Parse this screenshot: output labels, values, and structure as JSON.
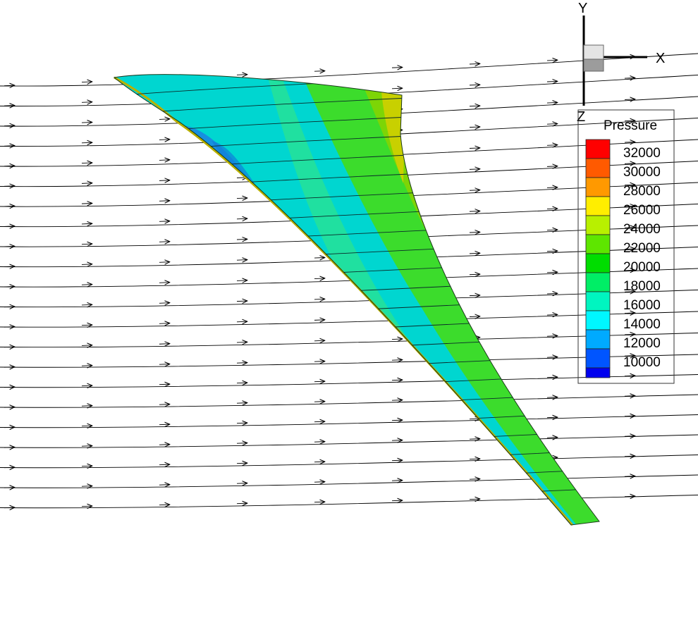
{
  "axes_triad": {
    "labels": {
      "y": "Y",
      "x": "X",
      "z": "Z"
    }
  },
  "legend": {
    "title": "Pressure",
    "levels": [
      {
        "value": "32000",
        "color": "#ff0000"
      },
      {
        "value": "30000",
        "color": "#ff5a00"
      },
      {
        "value": "28000",
        "color": "#ff9900"
      },
      {
        "value": "26000",
        "color": "#ffee00"
      },
      {
        "value": "24000",
        "color": "#b8f000"
      },
      {
        "value": "22000",
        "color": "#5ee600"
      },
      {
        "value": "20000",
        "color": "#00dd00"
      },
      {
        "value": "18000",
        "color": "#00ee66"
      },
      {
        "value": "16000",
        "color": "#00f5c0"
      },
      {
        "value": "14000",
        "color": "#00f7ff"
      },
      {
        "value": "12000",
        "color": "#00aaff"
      },
      {
        "value": "10000",
        "color": "#0055ff"
      }
    ],
    "lowest_color": "#0000ee"
  },
  "surface_colors": {
    "low": "#1690e0",
    "mid_low": "#00d6d0",
    "mid": "#20e0a0",
    "mid_high": "#3cdc2c",
    "high": "#88d400",
    "edge": "#d8c000"
  }
}
